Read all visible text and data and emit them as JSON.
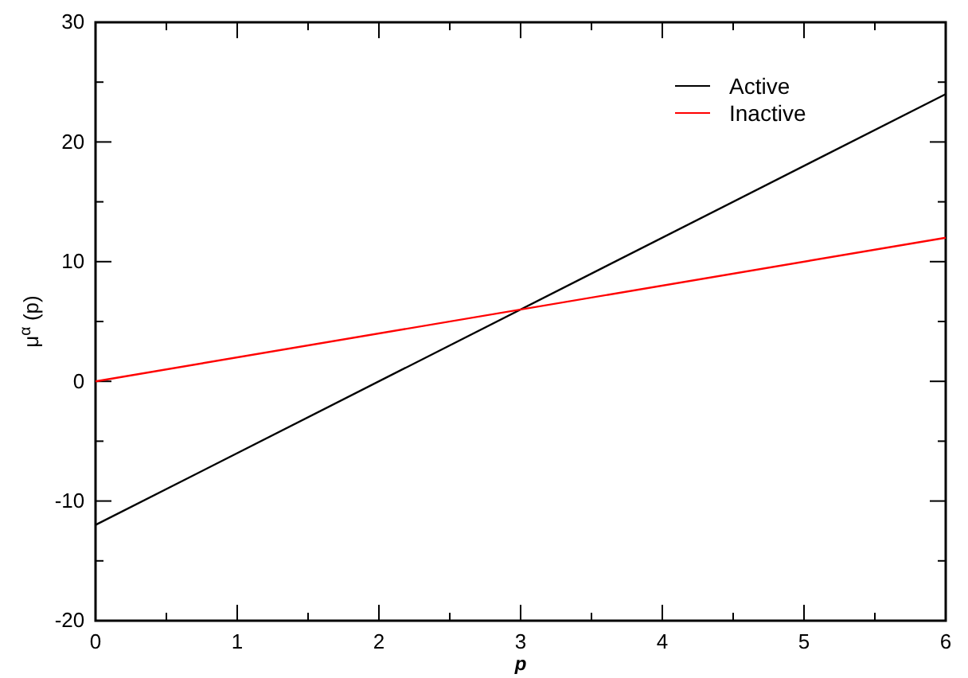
{
  "chart_data": {
    "type": "line",
    "xlabel": "p",
    "ylabel": "μ$^{α}$ (p)",
    "x": [
      0,
      6
    ],
    "series": [
      {
        "name": "Active",
        "color": "#000000",
        "values": [
          -12,
          24
        ]
      },
      {
        "name": "Inactive",
        "color": "#ff0000",
        "values": [
          0,
          12
        ]
      }
    ],
    "xlim": [
      0,
      6
    ],
    "xticks": [
      0,
      {
        "value": 0.5,
        "label": null
      },
      1,
      {
        "value": 1.5,
        "label": null
      },
      2,
      {
        "value": 2.5,
        "label": null
      },
      3,
      {
        "value": 3.5,
        "label": null
      },
      4,
      {
        "value": 4.5,
        "label": null
      },
      5,
      {
        "value": 5.5,
        "label": null
      },
      6
    ],
    "ylim": [
      -20,
      30
    ],
    "yticks": [
      -20,
      {
        "value": -15,
        "label": null
      },
      -10,
      {
        "value": -5,
        "label": null
      },
      0,
      {
        "value": 5,
        "label": null
      },
      10,
      {
        "value": 15,
        "label": null
      },
      20,
      {
        "value": 25,
        "label": null
      },
      30
    ],
    "grid": false,
    "legend": "top right",
    "marker": "none",
    "line_style": "solid"
  }
}
